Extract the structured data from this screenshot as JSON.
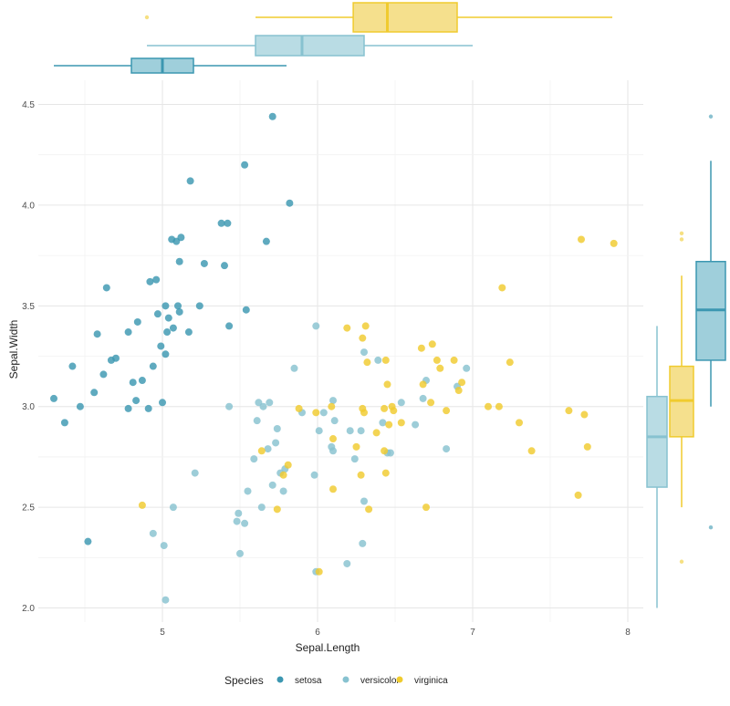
{
  "chart_data": {
    "type": "scatter",
    "title": "",
    "xlabel": "Sepal.Length",
    "ylabel": "Sepal.Width",
    "xlim": [
      4.2,
      8.1
    ],
    "ylim": [
      1.93,
      4.62
    ],
    "x_ticks": [
      5,
      6,
      7,
      8
    ],
    "y_ticks": [
      2.0,
      2.5,
      3.0,
      3.5,
      4.0,
      4.5
    ],
    "x_tick_labels": [
      "5",
      "6",
      "7",
      "8"
    ],
    "y_tick_labels": [
      "2.0",
      "2.5",
      "3.0",
      "3.5",
      "4.0",
      "4.5"
    ],
    "grid": true,
    "legend": {
      "position": "bottom",
      "title": "Species",
      "entries": [
        "setosa",
        "versicolor",
        "virginica"
      ]
    },
    "colors": {
      "setosa": "#3c97b1",
      "versicolor": "#87c2d0",
      "virginica": "#f0cb2e"
    },
    "series": [
      {
        "name": "setosa",
        "points": [
          [
            4.3,
            3.04
          ],
          [
            4.37,
            2.92
          ],
          [
            4.42,
            3.2
          ],
          [
            4.47,
            3.0
          ],
          [
            4.52,
            2.33
          ],
          [
            4.56,
            3.07
          ],
          [
            4.58,
            3.36
          ],
          [
            4.62,
            3.16
          ],
          [
            4.64,
            3.59
          ],
          [
            4.67,
            3.23
          ],
          [
            4.7,
            3.24
          ],
          [
            4.78,
            3.37
          ],
          [
            4.78,
            2.99
          ],
          [
            4.81,
            3.12
          ],
          [
            4.83,
            3.03
          ],
          [
            4.84,
            3.42
          ],
          [
            4.87,
            3.13
          ],
          [
            4.91,
            2.99
          ],
          [
            4.92,
            3.62
          ],
          [
            4.94,
            3.2
          ],
          [
            4.96,
            3.63
          ],
          [
            4.97,
            3.46
          ],
          [
            4.99,
            3.3
          ],
          [
            5.0,
            3.02
          ],
          [
            5.02,
            3.26
          ],
          [
            5.02,
            3.5
          ],
          [
            5.03,
            3.37
          ],
          [
            5.04,
            3.44
          ],
          [
            5.06,
            3.83
          ],
          [
            5.07,
            3.39
          ],
          [
            5.09,
            3.82
          ],
          [
            5.1,
            3.5
          ],
          [
            5.11,
            3.47
          ],
          [
            5.11,
            3.72
          ],
          [
            5.12,
            3.84
          ],
          [
            5.17,
            3.37
          ],
          [
            5.18,
            4.12
          ],
          [
            5.24,
            3.5
          ],
          [
            5.27,
            3.71
          ],
          [
            5.38,
            3.91
          ],
          [
            5.4,
            3.7
          ],
          [
            5.42,
            3.91
          ],
          [
            5.43,
            3.4
          ],
          [
            5.53,
            4.2
          ],
          [
            5.54,
            3.48
          ],
          [
            5.67,
            3.82
          ],
          [
            5.71,
            4.44
          ],
          [
            5.82,
            4.01
          ]
        ]
      },
      {
        "name": "versicolor",
        "points": [
          [
            4.94,
            2.37
          ],
          [
            5.01,
            2.31
          ],
          [
            5.02,
            2.04
          ],
          [
            5.07,
            2.5
          ],
          [
            5.21,
            2.67
          ],
          [
            5.43,
            3.0
          ],
          [
            5.48,
            2.43
          ],
          [
            5.49,
            2.47
          ],
          [
            5.5,
            2.27
          ],
          [
            5.53,
            2.42
          ],
          [
            5.55,
            2.58
          ],
          [
            5.59,
            2.74
          ],
          [
            5.61,
            2.93
          ],
          [
            5.62,
            3.02
          ],
          [
            5.64,
            2.5
          ],
          [
            5.65,
            3.0
          ],
          [
            5.68,
            2.79
          ],
          [
            5.69,
            3.02
          ],
          [
            5.71,
            2.61
          ],
          [
            5.73,
            2.82
          ],
          [
            5.74,
            2.89
          ],
          [
            5.76,
            2.67
          ],
          [
            5.78,
            2.58
          ],
          [
            5.79,
            2.69
          ],
          [
            5.85,
            3.19
          ],
          [
            5.9,
            2.97
          ],
          [
            5.98,
            2.66
          ],
          [
            5.99,
            3.4
          ],
          [
            5.99,
            2.18
          ],
          [
            6.01,
            2.88
          ],
          [
            6.04,
            2.97
          ],
          [
            6.09,
            2.8
          ],
          [
            6.1,
            2.78
          ],
          [
            6.1,
            3.03
          ],
          [
            6.11,
            2.93
          ],
          [
            6.19,
            2.22
          ],
          [
            6.21,
            2.88
          ],
          [
            6.24,
            2.74
          ],
          [
            6.28,
            2.88
          ],
          [
            6.29,
            2.32
          ],
          [
            6.3,
            2.53
          ],
          [
            6.3,
            3.27
          ],
          [
            6.39,
            3.23
          ],
          [
            6.42,
            2.92
          ],
          [
            6.45,
            2.77
          ],
          [
            6.47,
            2.77
          ],
          [
            6.54,
            3.02
          ],
          [
            6.63,
            2.91
          ],
          [
            6.68,
            3.04
          ],
          [
            6.7,
            3.13
          ],
          [
            6.83,
            2.79
          ],
          [
            6.9,
            3.1
          ],
          [
            6.96,
            3.19
          ]
        ]
      },
      {
        "name": "virginica",
        "points": [
          [
            4.87,
            2.51
          ],
          [
            5.64,
            2.78
          ],
          [
            5.74,
            2.49
          ],
          [
            5.78,
            2.66
          ],
          [
            5.81,
            2.71
          ],
          [
            5.88,
            2.99
          ],
          [
            5.99,
            2.97
          ],
          [
            6.01,
            2.18
          ],
          [
            6.09,
            3.0
          ],
          [
            6.1,
            2.59
          ],
          [
            6.1,
            2.84
          ],
          [
            6.19,
            3.39
          ],
          [
            6.25,
            2.8
          ],
          [
            6.28,
            2.66
          ],
          [
            6.29,
            3.34
          ],
          [
            6.29,
            2.99
          ],
          [
            6.3,
            2.97
          ],
          [
            6.31,
            3.4
          ],
          [
            6.32,
            3.22
          ],
          [
            6.33,
            2.49
          ],
          [
            6.38,
            2.87
          ],
          [
            6.43,
            2.78
          ],
          [
            6.43,
            2.99
          ],
          [
            6.44,
            2.67
          ],
          [
            6.44,
            3.23
          ],
          [
            6.45,
            3.11
          ],
          [
            6.46,
            2.91
          ],
          [
            6.48,
            3.0
          ],
          [
            6.49,
            2.98
          ],
          [
            6.54,
            2.92
          ],
          [
            6.67,
            3.29
          ],
          [
            6.68,
            3.11
          ],
          [
            6.7,
            2.5
          ],
          [
            6.73,
            3.02
          ],
          [
            6.74,
            3.31
          ],
          [
            6.77,
            3.23
          ],
          [
            6.79,
            3.19
          ],
          [
            6.83,
            2.98
          ],
          [
            6.88,
            3.23
          ],
          [
            6.91,
            3.08
          ],
          [
            6.93,
            3.12
          ],
          [
            7.1,
            3.0
          ],
          [
            7.17,
            3.0
          ],
          [
            7.19,
            3.59
          ],
          [
            7.24,
            3.22
          ],
          [
            7.3,
            2.92
          ],
          [
            7.38,
            2.78
          ],
          [
            7.62,
            2.98
          ],
          [
            7.68,
            2.56
          ],
          [
            7.7,
            3.83
          ],
          [
            7.72,
            2.96
          ],
          [
            7.74,
            2.8
          ],
          [
            7.91,
            3.81
          ]
        ]
      }
    ],
    "marginal_x_boxplots": [
      {
        "name": "setosa",
        "min": 4.3,
        "q1": 4.8,
        "median": 5.0,
        "q3": 5.2,
        "max": 5.8,
        "outliers": []
      },
      {
        "name": "versicolor",
        "min": 4.9,
        "q1": 5.6,
        "median": 5.9,
        "q3": 6.3,
        "max": 7.0,
        "outliers": []
      },
      {
        "name": "virginica",
        "min": 5.6,
        "q1": 6.23,
        "median": 6.45,
        "q3": 6.9,
        "max": 7.9,
        "outliers": [
          4.9
        ]
      }
    ],
    "marginal_y_boxplots": [
      {
        "name": "versicolor",
        "min": 2.0,
        "q1": 2.6,
        "median": 2.85,
        "q3": 3.05,
        "max": 3.4,
        "outliers": []
      },
      {
        "name": "virginica",
        "min": 2.5,
        "q1": 2.85,
        "median": 3.03,
        "q3": 3.2,
        "max": 3.65,
        "outliers": [
          2.23,
          3.83,
          3.86
        ]
      },
      {
        "name": "setosa",
        "min": 3.0,
        "q1": 3.23,
        "median": 3.48,
        "q3": 3.72,
        "max": 4.22,
        "outliers": [
          2.4,
          4.44
        ]
      }
    ]
  }
}
